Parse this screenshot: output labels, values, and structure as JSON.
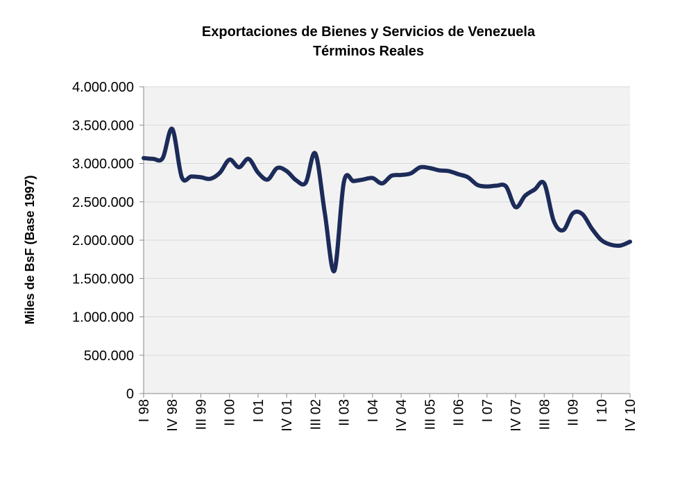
{
  "chart_data": {
    "type": "line",
    "title": "Exportaciones de Bienes y Servicios de Venezuela",
    "subtitle": "Términos Reales",
    "y_label": "Miles de BsF (Base 1997)",
    "categories": [
      "I 98",
      null,
      null,
      "IV 98",
      null,
      null,
      "III 99",
      null,
      null,
      "II 00",
      null,
      null,
      "I 01",
      null,
      null,
      "IV 01",
      null,
      null,
      "III 02",
      null,
      null,
      "II 03",
      null,
      null,
      "I 04",
      null,
      null,
      "IV 04",
      null,
      null,
      "III 05",
      null,
      null,
      "II 06",
      null,
      null,
      "I 07",
      null,
      null,
      "IV 07",
      null,
      null,
      "III 08",
      null,
      null,
      "II 09",
      null,
      null,
      "I 10",
      null,
      null,
      "IV 10"
    ],
    "series": [
      {
        "name": "Exportaciones",
        "color": "#1c2b59",
        "values": [
          3070000,
          3060000,
          3070000,
          3450000,
          2820000,
          2830000,
          2820000,
          2800000,
          2880000,
          3050000,
          2950000,
          3060000,
          2880000,
          2790000,
          2940000,
          2900000,
          2780000,
          2750000,
          3130000,
          2350000,
          1600000,
          2760000,
          2770000,
          2790000,
          2810000,
          2740000,
          2840000,
          2850000,
          2870000,
          2950000,
          2940000,
          2910000,
          2900000,
          2860000,
          2820000,
          2720000,
          2700000,
          2710000,
          2700000,
          2430000,
          2580000,
          2660000,
          2740000,
          2250000,
          2130000,
          2350000,
          2340000,
          2150000,
          2000000,
          1940000,
          1930000,
          1980000
        ]
      }
    ],
    "ylim": [
      0,
      4000000
    ],
    "yticks": [
      0,
      {
        "value": 500000,
        "label": "500.000"
      },
      {
        "value": 1000000,
        "label": "1.000.000"
      },
      {
        "value": 1500000,
        "label": "1.500.000"
      },
      {
        "value": 2000000,
        "label": "2.000.000"
      },
      {
        "value": 2500000,
        "label": "2.500.000"
      },
      {
        "value": 3000000,
        "label": "3.000.000"
      },
      {
        "value": 3500000,
        "label": "3.500.000"
      },
      {
        "value": 4000000,
        "label": "4.000.000"
      }
    ],
    "grid": true
  }
}
